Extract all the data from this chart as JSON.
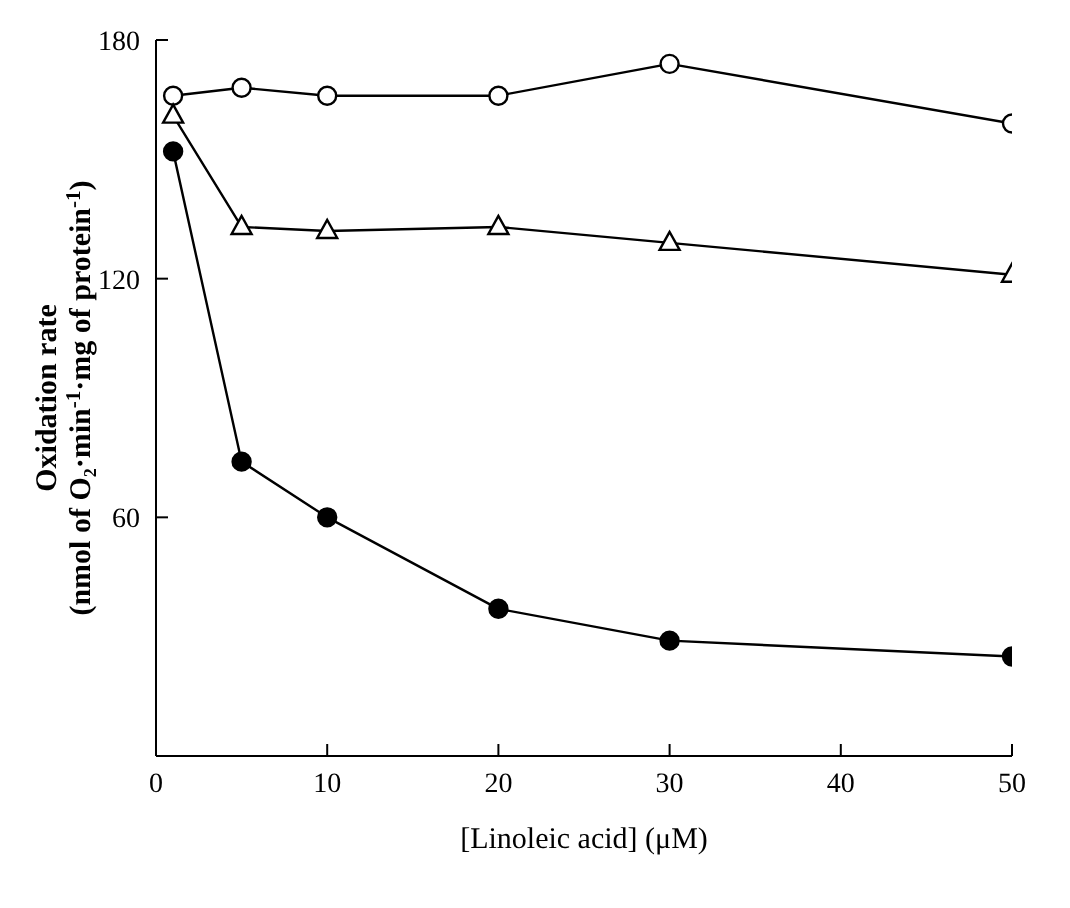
{
  "chart_data": {
    "type": "line",
    "xlabel": "[Linoleic acid] (μM)",
    "ylabel": "Oxidation rate\n(nmol of O₂·min$^{-1}$·mg of protein$^{-1}$)",
    "xlim": [
      0,
      50
    ],
    "xticks": [
      0,
      10,
      20,
      30,
      40,
      50
    ],
    "ylim": [
      0,
      180
    ],
    "yticks": [
      60,
      120,
      180
    ],
    "grid": false,
    "legend": false,
    "line_style": "solid",
    "series": [
      {
        "color": "#000000",
        "marker": "circle",
        "x": [
          1,
          5,
          10,
          20,
          30,
          50
        ],
        "values": [
          166,
          168,
          166,
          166,
          174,
          159
        ]
      },
      {
        "color": "#000000",
        "marker": "triangle",
        "x": [
          1,
          5,
          10,
          20,
          30,
          50
        ],
        "values": [
          161,
          133,
          132,
          133,
          129,
          121
        ]
      },
      {
        "color": "#000000",
        "marker": "circle",
        "x": [
          1,
          5,
          10,
          20,
          30,
          50
        ],
        "values": [
          152,
          74,
          60,
          37,
          29,
          25
        ]
      }
    ]
  }
}
